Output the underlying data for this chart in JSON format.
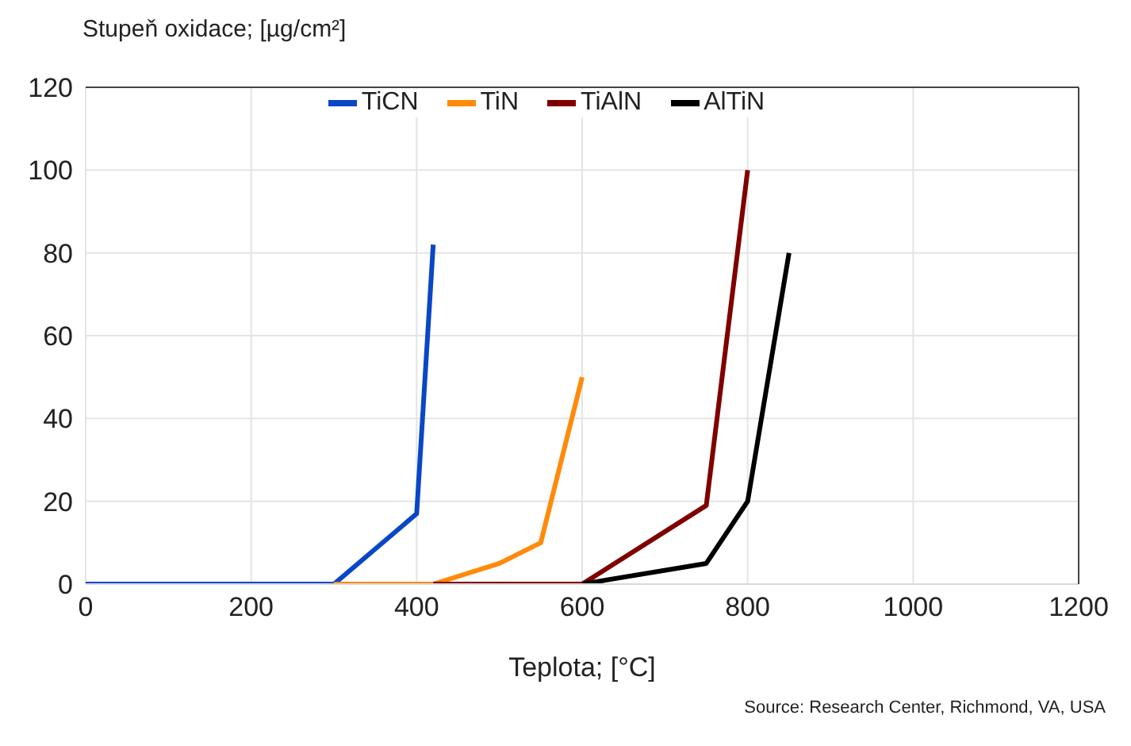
{
  "chart_data": {
    "type": "line",
    "ylabel": "Stupeň oxidace; [µg/cm²]",
    "xlabel": "Teplota; [°C]",
    "annotations": [
      "Source: Research Center, Richmond, VA, USA"
    ],
    "xlim": [
      0,
      1200
    ],
    "xticks": [
      0,
      200,
      400,
      600,
      800,
      1000,
      1200
    ],
    "ylim": [
      0,
      120
    ],
    "yticks": [
      0,
      20,
      40,
      60,
      80,
      100,
      120
    ],
    "grid": true,
    "legend": "top",
    "marker": "none",
    "line_style": "solid",
    "series": [
      {
        "name": "TiCN",
        "color": "#0a47c7",
        "x": [
          0,
          300,
          400,
          420
        ],
        "values": [
          0,
          0,
          17,
          82
        ]
      },
      {
        "name": "TiN",
        "color": "#ff8a0a",
        "x": [
          300,
          420,
          500,
          550,
          600
        ],
        "values": [
          0,
          0,
          5,
          10,
          50
        ]
      },
      {
        "name": "TiAlN",
        "color": "#7f0000",
        "x": [
          420,
          600,
          750,
          800
        ],
        "values": [
          0,
          0,
          19,
          100
        ]
      },
      {
        "name": "AlTiN",
        "color": "#000000",
        "x": [
          600,
          750,
          800,
          850
        ],
        "values": [
          0,
          5,
          20,
          80
        ]
      }
    ]
  }
}
